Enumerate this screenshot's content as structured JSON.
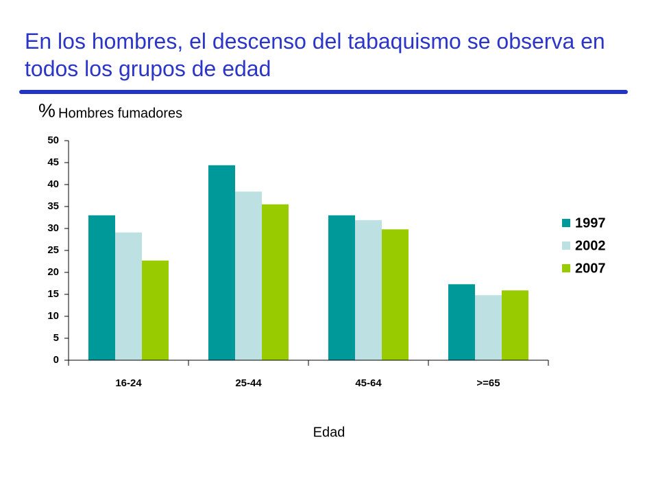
{
  "chart_data": {
    "type": "bar",
    "title": "En los hombres, el descenso del tabaquismo se observa en todos los grupos de edad",
    "y_unit": "%",
    "ylabel": "Hombres fumadores",
    "xlabel": "Edad",
    "categories": [
      "16-24",
      "25-44",
      "45-64",
      ">=65"
    ],
    "series": [
      {
        "name": "1997",
        "color": "#009999",
        "values": [
          33.0,
          44.4,
          33.0,
          17.3
        ]
      },
      {
        "name": "2002",
        "color": "#bde0e3",
        "values": [
          29.1,
          38.4,
          31.9,
          14.8
        ]
      },
      {
        "name": "2007",
        "color": "#99cc00",
        "values": [
          22.7,
          35.5,
          29.8,
          15.9
        ]
      }
    ],
    "ylim": [
      0,
      50
    ],
    "yticks": [
      0,
      5,
      10,
      15,
      20,
      25,
      30,
      35,
      40,
      45,
      50
    ],
    "grid": false,
    "legend": "right"
  }
}
